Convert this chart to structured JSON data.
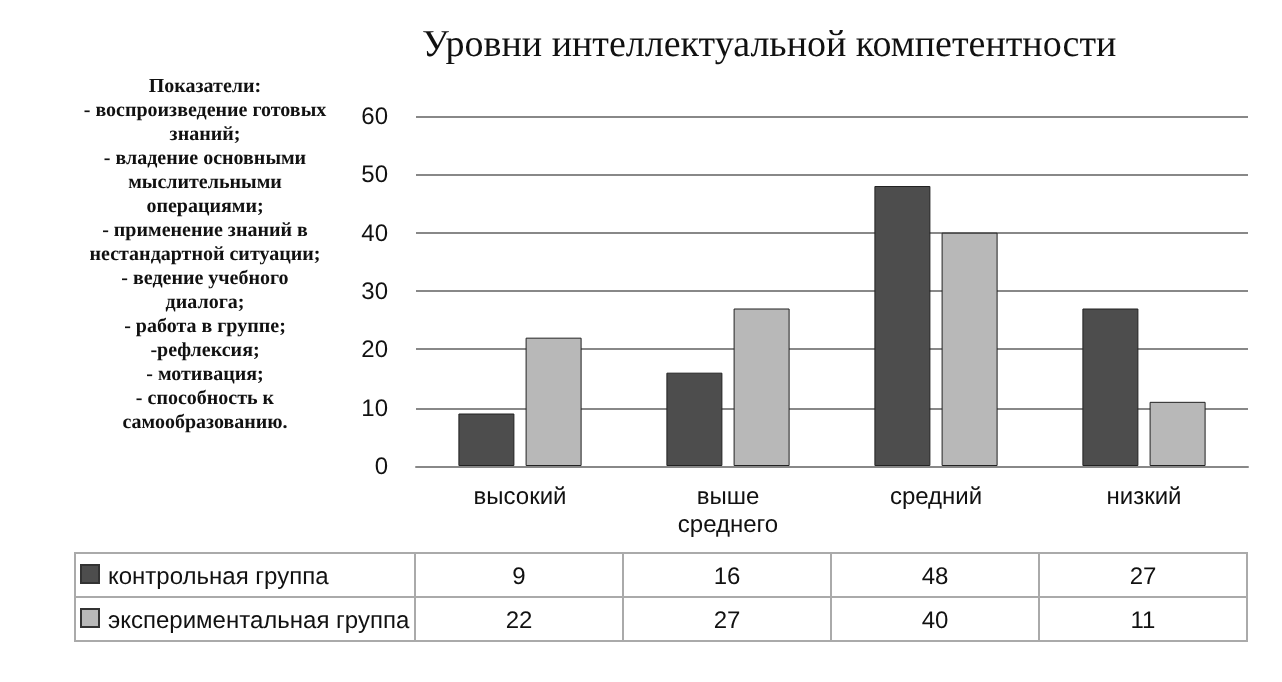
{
  "chart_data": {
    "type": "bar",
    "title": "Уровни интеллектуальной компетентности",
    "annotations": [
      "Показатели:\n- воспроизведение готовых знаний;\n- владение основными мыслительными операциями;\n- применение знаний в нестандартной ситуации;\n- ведение учебного диалога;\n- работа в группе;\n-рефлексия;\n- мотивация;\n- способность к самообразованию."
    ],
    "categories": [
      "высокий",
      "выше среднего",
      "средний",
      "низкий"
    ],
    "series": [
      {
        "name": "контрольная группа",
        "color": "#4d4d4d",
        "values": [
          9,
          16,
          48,
          27
        ]
      },
      {
        "name": "экспериментальная группа",
        "color": "#b8b8b8",
        "values": [
          22,
          27,
          40,
          11
        ]
      }
    ],
    "ylim": [
      0,
      60
    ],
    "yticks": [
      0,
      10,
      20,
      30,
      40,
      50,
      60
    ],
    "grid": "y",
    "legend": "bottom",
    "data_labels": true
  }
}
